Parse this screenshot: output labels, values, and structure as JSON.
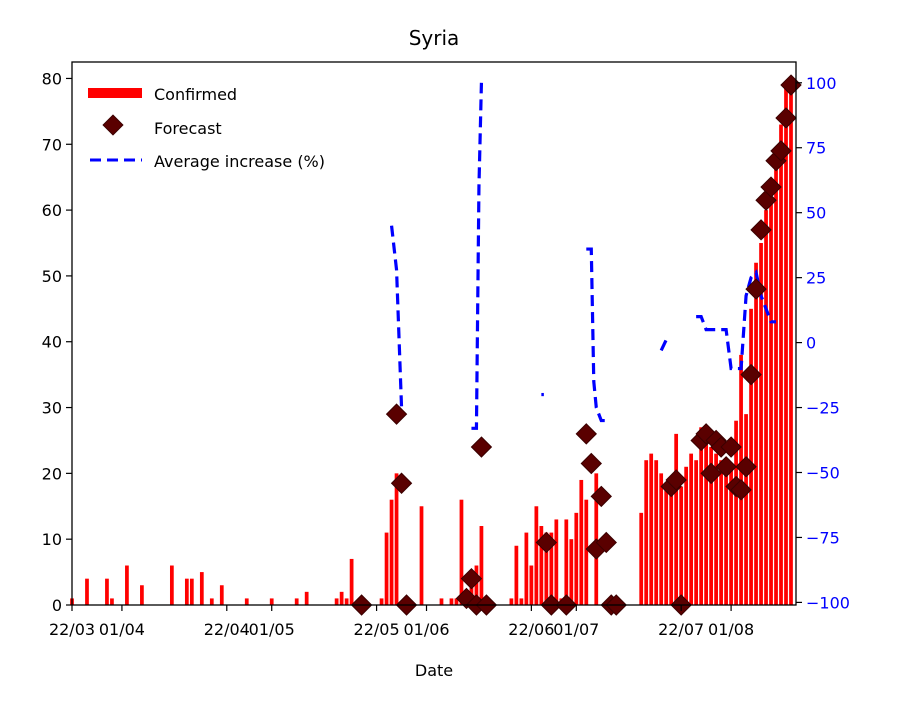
{
  "chart_data": {
    "type": "bar",
    "title": "Syria",
    "xlabel": "Date",
    "ylabel": "",
    "y2label": "",
    "ylim": [
      0,
      82.5
    ],
    "y2lim": [
      -101,
      108
    ],
    "xlim": [
      0,
      145
    ],
    "yticks": [
      0,
      10,
      20,
      30,
      40,
      50,
      60,
      70,
      80
    ],
    "y2ticks": [
      -100,
      -75,
      -50,
      -25,
      0,
      25,
      50,
      75,
      100
    ],
    "xticks": [
      {
        "x": 0,
        "label": "22/03"
      },
      {
        "x": 10,
        "label": "01/04"
      },
      {
        "x": 31,
        "label": "22/04"
      },
      {
        "x": 40,
        "label": "01/05"
      },
      {
        "x": 61,
        "label": "22/05"
      },
      {
        "x": 71,
        "label": "01/06"
      },
      {
        "x": 92,
        "label": "22/06"
      },
      {
        "x": 101,
        "label": "01/07"
      },
      {
        "x": 122,
        "label": "22/07"
      },
      {
        "x": 132,
        "label": "01/08"
      }
    ],
    "legend_position": "top-left",
    "colors": {
      "confirmed": "#ff0000",
      "forecast": "#5a0000",
      "average": "#0000ff",
      "right_axis": "#0000ff"
    },
    "series": [
      {
        "name": "Confirmed",
        "kind": "bar",
        "x": [
          0,
          3,
          7,
          8,
          11,
          14,
          20,
          23,
          24,
          26,
          28,
          30,
          35,
          40,
          45,
          47,
          53,
          54,
          55,
          56,
          62,
          63,
          64,
          65,
          70,
          74,
          76,
          77,
          78,
          79,
          80,
          81,
          82,
          88,
          89,
          90,
          91,
          92,
          93,
          94,
          95,
          96,
          97,
          98,
          99,
          100,
          101,
          102,
          103,
          105,
          114,
          115,
          116,
          117,
          118,
          119,
          120,
          121,
          122,
          123,
          124,
          125,
          126,
          127,
          128,
          129,
          130,
          131,
          132,
          133,
          134,
          135,
          136,
          137,
          138,
          139,
          140,
          141,
          142,
          143,
          144
        ],
        "values": [
          1,
          4,
          4,
          1,
          6,
          3,
          6,
          4,
          4,
          5,
          1,
          3,
          1,
          1,
          1,
          2,
          1,
          2,
          1,
          7,
          1,
          11,
          16,
          20,
          15,
          1,
          1,
          1,
          16,
          1,
          3,
          6,
          12,
          1,
          9,
          1,
          11,
          6,
          15,
          12,
          11,
          11,
          13,
          1,
          13,
          10,
          14,
          19,
          16,
          20,
          14,
          22,
          23,
          22,
          20,
          18,
          18,
          26,
          18,
          21,
          23,
          22,
          27,
          26,
          24,
          23,
          22,
          21,
          21,
          28,
          38,
          29,
          45,
          52,
          55,
          60,
          62,
          68,
          73,
          79,
          78
        ]
      },
      {
        "name": "Forecast",
        "kind": "scatter",
        "x": [
          58,
          65,
          66,
          67,
          79,
          80,
          81,
          82,
          83,
          95,
          96,
          99,
          103,
          104,
          105,
          106,
          107,
          108,
          109,
          120,
          121,
          122,
          126,
          127,
          128,
          129,
          130,
          131,
          132,
          133,
          134,
          135,
          136,
          137,
          138,
          139,
          140,
          141,
          142,
          143,
          144
        ],
        "values": [
          0,
          29,
          18.5,
          0,
          1,
          4,
          0,
          24,
          0,
          9.5,
          0,
          0,
          26,
          21.5,
          8.5,
          16.5,
          9.5,
          0,
          0,
          18,
          19,
          0,
          25,
          26,
          20,
          25,
          24,
          21,
          24,
          18,
          17.5,
          21,
          35,
          48,
          57,
          61.5,
          63.5,
          67.5,
          69,
          74,
          79
        ]
      },
      {
        "name": "Average increase (%)",
        "kind": "line",
        "segments": [
          {
            "x": [
              64,
              65,
              66
            ],
            "values": [
              45,
              28,
              -25
            ]
          },
          {
            "x": [
              80,
              81,
              81.5,
              82
            ],
            "values": [
              -33,
              -33,
              60,
              100
            ]
          },
          {
            "x": [
              94,
              94.5
            ],
            "values": [
              -20,
              -20
            ]
          },
          {
            "x": [
              103,
              104,
              104.5,
              105,
              106,
              107
            ],
            "values": [
              36,
              36,
              -15,
              -25,
              -30,
              -30
            ]
          },
          {
            "x": [
              118,
              119,
              120
            ],
            "values": [
              -3,
              1,
              1
            ]
          },
          {
            "x": [
              125,
              126,
              127,
              128,
              129,
              130,
              131,
              132,
              133,
              134,
              135,
              136,
              137,
              138,
              139,
              140,
              141
            ],
            "values": [
              10,
              10,
              5,
              5,
              5,
              5,
              5,
              -10,
              -10,
              -10,
              18,
              25,
              27,
              18,
              13,
              8,
              8
            ]
          }
        ]
      }
    ]
  }
}
